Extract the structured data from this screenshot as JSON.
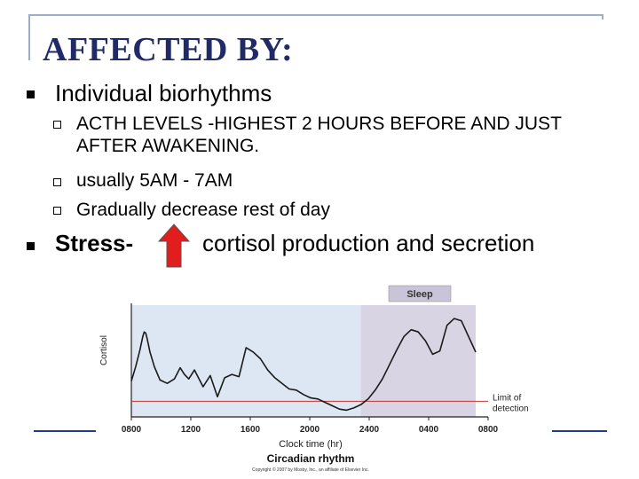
{
  "slide": {
    "title": "AFFECTED BY:",
    "bullets": [
      {
        "label": "Individual  biorhythms",
        "sub": [
          "ACTH LEVELS -HIGHEST 2 HOURS BEFORE AND JUST AFTER AWAKENING.",
          "usually  5AM - 7AM",
          "Gradually decrease rest of day"
        ]
      },
      {
        "label": "Stress-",
        "after_arrow": "cortisol production and secretion",
        "arrow_icon": "up-arrow-icon",
        "arrow_color": "#e11d1d"
      }
    ]
  },
  "chart_data": {
    "type": "line",
    "title": "Circadian rhythm",
    "xlabel": "Clock time (hr)",
    "ylabel": "Cortisol",
    "x_ticks": [
      "0800",
      "1200",
      "1600",
      "2000",
      "2400",
      "0400",
      "0800"
    ],
    "shaded_label": "Sleep",
    "shaded_range": [
      "2400",
      "0800"
    ],
    "threshold_label_1": "Limit of",
    "threshold_label_2": "detection",
    "copyright": "Copyright © 2007 by Mosby, Inc., an affiliate of Elsevier Inc.",
    "x": [
      0,
      0.3,
      0.6,
      0.8,
      0.9,
      1.0,
      1.1,
      1.3,
      1.6,
      2.0,
      2.5,
      3.0,
      3.4,
      3.7,
      4.0,
      4.4,
      5.0,
      5.5,
      6.0,
      6.5,
      7.0,
      7.5,
      8.0,
      8.5,
      9.0,
      9.5,
      10.0,
      10.5,
      11.0,
      11.5,
      12.0,
      12.5,
      13.0,
      13.5,
      14.0,
      14.5,
      15.0,
      15.5,
      16.0,
      16.5,
      17.0,
      17.5,
      18.0,
      18.5,
      19.0,
      19.5,
      20.0,
      20.5,
      21.0,
      21.5,
      22.0,
      22.5,
      23.0,
      23.5,
      24.0
    ],
    "y": [
      0.32,
      0.45,
      0.6,
      0.72,
      0.76,
      0.75,
      0.7,
      0.58,
      0.45,
      0.33,
      0.3,
      0.34,
      0.44,
      0.38,
      0.34,
      0.42,
      0.27,
      0.37,
      0.18,
      0.35,
      0.38,
      0.36,
      0.62,
      0.58,
      0.52,
      0.42,
      0.35,
      0.3,
      0.25,
      0.24,
      0.2,
      0.17,
      0.16,
      0.13,
      0.1,
      0.07,
      0.06,
      0.08,
      0.11,
      0.16,
      0.24,
      0.34,
      0.47,
      0.6,
      0.72,
      0.78,
      0.76,
      0.68,
      0.56,
      0.59,
      0.82,
      0.88,
      0.86,
      0.72,
      0.58
    ],
    "threshold": 0.14,
    "ylim": [
      0,
      1
    ],
    "xlim": [
      0,
      24
    ],
    "shaded_start": 16,
    "colors": {
      "line": "#1a1a1a",
      "threshold": "#c0392b",
      "shade": "#d8d4e4",
      "plot_bg": "#dde7f3",
      "sleep_box": "#c9c4d8"
    }
  }
}
